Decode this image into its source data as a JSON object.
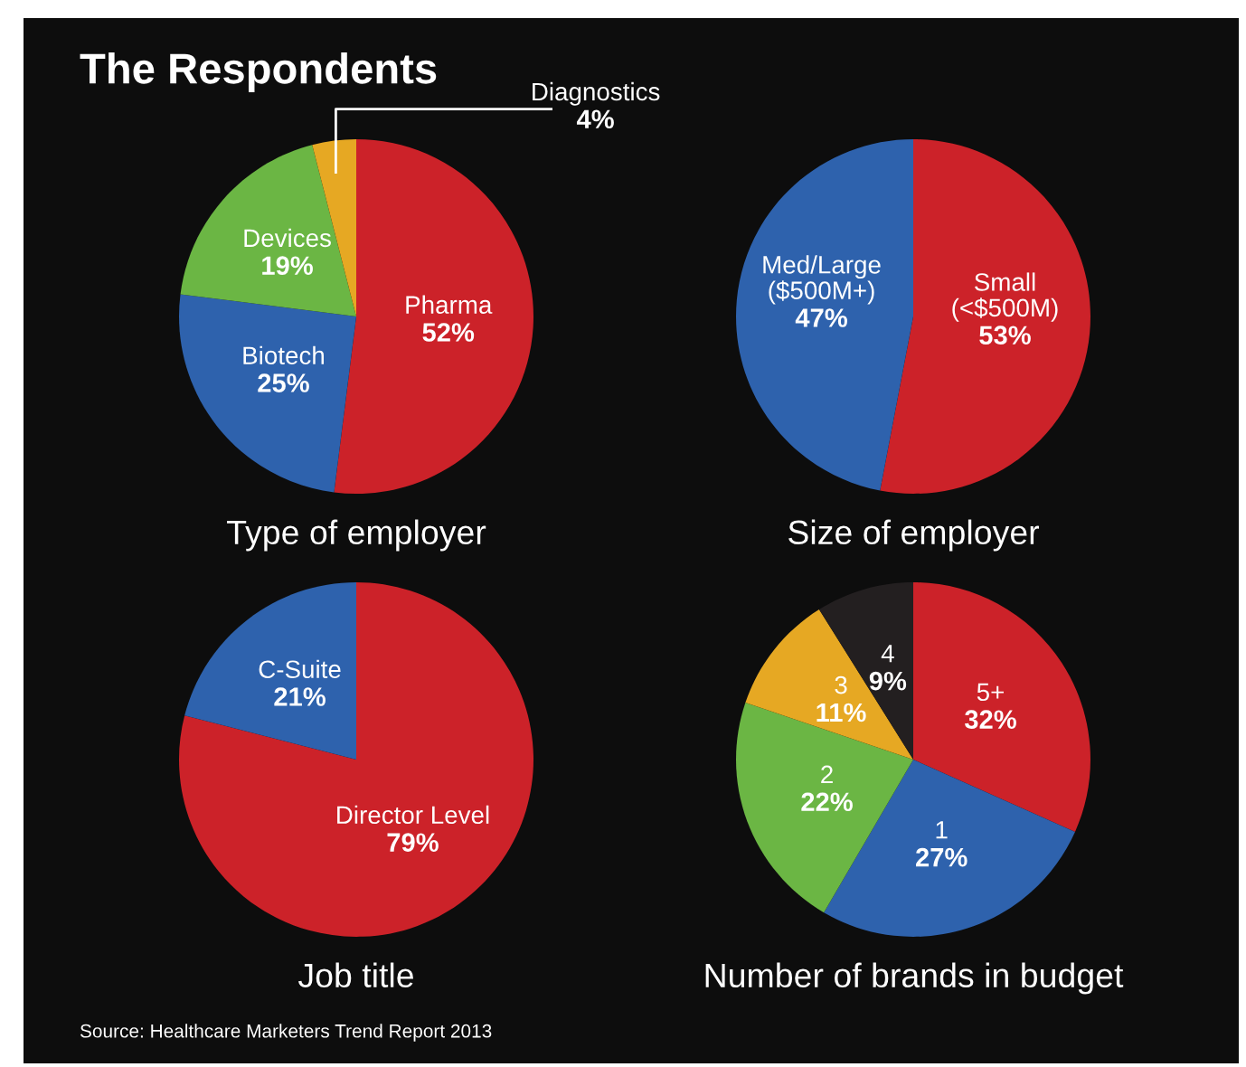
{
  "chart_data": [
    {
      "type": "pie",
      "title": "Type of employer",
      "annotations": [
        "The Respondents"
      ],
      "categories": [
        "Pharma",
        "Biotech",
        "Devices",
        "Diagnostics"
      ],
      "values": [
        52,
        25,
        19,
        4
      ],
      "value_labels": [
        "52%",
        "25%",
        "19%",
        "4%"
      ],
      "colors": [
        "#cc2229",
        "#2e62ad",
        "#6bb644",
        "#e6a823"
      ]
    },
    {
      "type": "pie",
      "title": "Size of employer",
      "categories": [
        "Small\n(<$500M)",
        "Med/Large\n($500M+)"
      ],
      "values": [
        53,
        47
      ],
      "value_labels": [
        "53%",
        "47%"
      ],
      "colors": [
        "#cc2229",
        "#2e62ad"
      ]
    },
    {
      "type": "pie",
      "title": "Job title",
      "categories": [
        "Director Level",
        "C-Suite"
      ],
      "values": [
        79,
        21
      ],
      "value_labels": [
        "79%",
        "21%"
      ],
      "colors": [
        "#cc2229",
        "#2e62ad"
      ]
    },
    {
      "type": "pie",
      "title": "Number of brands in budget",
      "annotations": [
        "Source: Healthcare Marketers Trend Report 2013"
      ],
      "categories": [
        "5+",
        "1",
        "2",
        "3",
        "4"
      ],
      "values": [
        32,
        27,
        22,
        11,
        9
      ],
      "value_labels": [
        "32%",
        "27%",
        "22%",
        "11%",
        "9%"
      ],
      "colors": [
        "#cc2229",
        "#2e62ad",
        "#6bb644",
        "#e6a823",
        "#231f20"
      ]
    }
  ]
}
